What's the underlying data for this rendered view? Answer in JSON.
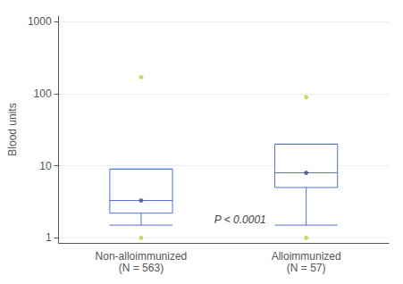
{
  "chart_data": {
    "type": "box",
    "categories": [
      "Non-alloimmunized\n(N = 563)",
      "Alloimmunized\n(N = 57)"
    ],
    "boxes": [
      {
        "whisker_low": 1.5,
        "q1": 2.2,
        "median": 3.3,
        "q3": 9.0,
        "whisker_high": 9.0
      },
      {
        "whisker_low": 1.5,
        "q1": 5.0,
        "median": 8.0,
        "q3": 20.0,
        "whisker_high": 20.0
      }
    ],
    "outliers": [
      [
        170.0,
        1.0
      ],
      [
        90.0,
        1.0
      ]
    ],
    "mean_dot": [
      3.3,
      8.0
    ],
    "ylabel": "Blood units",
    "log": "y",
    "ylim": [
      0.85,
      1200
    ],
    "yticks": [
      1,
      10,
      100,
      1000
    ],
    "grid": true,
    "annotations": [
      {
        "text": "P < 0.0001",
        "y": 1.8
      }
    ]
  }
}
